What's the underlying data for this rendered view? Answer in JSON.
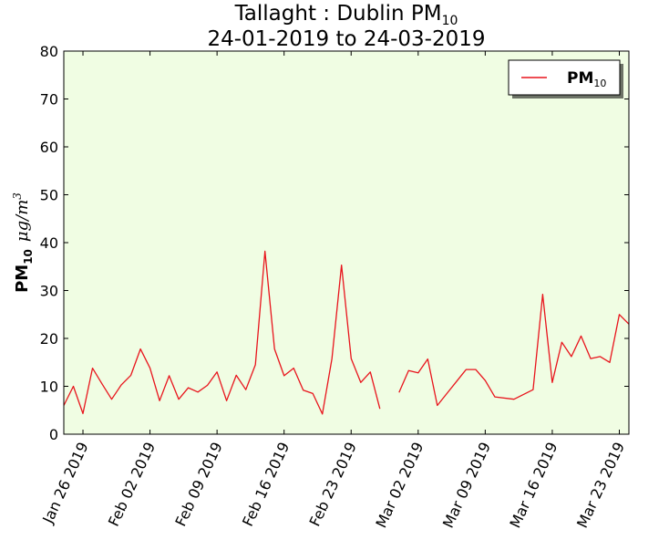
{
  "chart_data": {
    "type": "line",
    "title_main": "Tallaght : Dublin PM",
    "title_sub": "10",
    "title_line2": "24-01-2019 to 24-03-2019",
    "ylabel_main": "PM",
    "ylabel_sub": "10",
    "ylabel_unit": "μg/m",
    "ylabel_unit_sup": "3",
    "ylim": [
      0,
      80
    ],
    "yticks": [
      "0",
      "10",
      "20",
      "30",
      "40",
      "50",
      "60",
      "70",
      "80"
    ],
    "xlim": [
      "2019-01-24",
      "2019-03-24"
    ],
    "xticks": [
      {
        "date": "2019-01-26",
        "label": "Jan 26 2019"
      },
      {
        "date": "2019-02-02",
        "label": "Feb 02 2019"
      },
      {
        "date": "2019-02-09",
        "label": "Feb 09 2019"
      },
      {
        "date": "2019-02-16",
        "label": "Feb 16 2019"
      },
      {
        "date": "2019-02-23",
        "label": "Feb 23 2019"
      },
      {
        "date": "2019-03-02",
        "label": "Mar 02 2019"
      },
      {
        "date": "2019-03-09",
        "label": "Mar 09 2019"
      },
      {
        "date": "2019-03-16",
        "label": "Mar 16 2019"
      },
      {
        "date": "2019-03-23",
        "label": "Mar 23 2019"
      }
    ],
    "plot_background": "#f0fde3",
    "series": [
      {
        "name": "PM",
        "name_sub": "10",
        "color": "#e8141c",
        "points": [
          {
            "x": "2019-01-24",
            "y": 6.0
          },
          {
            "x": "2019-01-25",
            "y": 10.0
          },
          {
            "x": "2019-01-26",
            "y": 4.3
          },
          {
            "x": "2019-01-27",
            "y": 13.8
          },
          {
            "x": "2019-01-28",
            "y": 10.5
          },
          {
            "x": "2019-01-29",
            "y": 7.3
          },
          {
            "x": "2019-01-30",
            "y": 10.3
          },
          {
            "x": "2019-01-31",
            "y": 12.3
          },
          {
            "x": "2019-02-01",
            "y": 17.8
          },
          {
            "x": "2019-02-02",
            "y": 13.8
          },
          {
            "x": "2019-02-03",
            "y": 7.0
          },
          {
            "x": "2019-02-04",
            "y": 12.2
          },
          {
            "x": "2019-02-05",
            "y": 7.3
          },
          {
            "x": "2019-02-06",
            "y": 9.7
          },
          {
            "x": "2019-02-07",
            "y": 8.8
          },
          {
            "x": "2019-02-08",
            "y": 10.2
          },
          {
            "x": "2019-02-09",
            "y": 13.0
          },
          {
            "x": "2019-02-10",
            "y": 7.0
          },
          {
            "x": "2019-02-11",
            "y": 12.3
          },
          {
            "x": "2019-02-12",
            "y": 9.3
          },
          {
            "x": "2019-02-13",
            "y": 14.5
          },
          {
            "x": "2019-02-14",
            "y": 38.2
          },
          {
            "x": "2019-02-15",
            "y": 17.8
          },
          {
            "x": "2019-02-16",
            "y": 12.2
          },
          {
            "x": "2019-02-17",
            "y": 13.8
          },
          {
            "x": "2019-02-18",
            "y": 9.2
          },
          {
            "x": "2019-02-19",
            "y": 8.5
          },
          {
            "x": "2019-02-20",
            "y": 4.2
          },
          {
            "x": "2019-02-21",
            "y": 15.8
          },
          {
            "x": "2019-02-22",
            "y": 35.3
          },
          {
            "x": "2019-02-23",
            "y": 15.8
          },
          {
            "x": "2019-02-24",
            "y": 10.8
          },
          {
            "x": "2019-02-25",
            "y": 13.0
          },
          {
            "x": "2019-02-26",
            "y": 5.3
          },
          {
            "x": "2019-02-27",
            "y": null
          },
          {
            "x": "2019-02-28",
            "y": 8.7
          },
          {
            "x": "2019-03-01",
            "y": 13.3
          },
          {
            "x": "2019-03-02",
            "y": 12.8
          },
          {
            "x": "2019-03-03",
            "y": 15.7
          },
          {
            "x": "2019-03-04",
            "y": 6.0
          },
          {
            "x": "2019-03-05",
            "y": 8.5
          },
          {
            "x": "2019-03-06",
            "y": 11.0
          },
          {
            "x": "2019-03-07",
            "y": 13.5
          },
          {
            "x": "2019-03-08",
            "y": 13.5
          },
          {
            "x": "2019-03-09",
            "y": 11.2
          },
          {
            "x": "2019-03-10",
            "y": 7.8
          },
          {
            "x": "2019-03-12",
            "y": 7.3
          },
          {
            "x": "2019-03-14",
            "y": 9.3
          },
          {
            "x": "2019-03-15",
            "y": 29.2
          },
          {
            "x": "2019-03-16",
            "y": 10.8
          },
          {
            "x": "2019-03-17",
            "y": 19.2
          },
          {
            "x": "2019-03-18",
            "y": 16.2
          },
          {
            "x": "2019-03-19",
            "y": 20.5
          },
          {
            "x": "2019-03-20",
            "y": 15.8
          },
          {
            "x": "2019-03-21",
            "y": 16.2
          },
          {
            "x": "2019-03-22",
            "y": 15.0
          },
          {
            "x": "2019-03-23",
            "y": 25.0
          },
          {
            "x": "2019-03-24",
            "y": 23.0
          }
        ]
      }
    ],
    "legend_placement": "top-right",
    "grid": false
  }
}
